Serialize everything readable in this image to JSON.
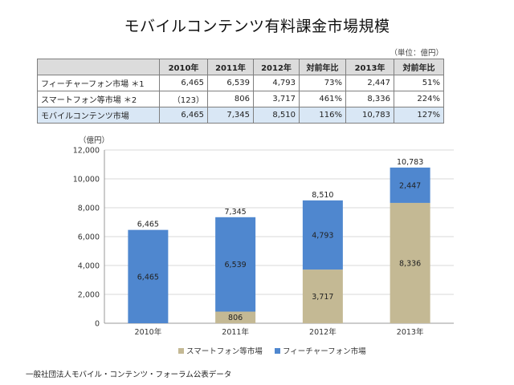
{
  "title": "モバイルコンテンツ有料課金市場規模",
  "unit_note": "（単位：億円）",
  "table": {
    "headers": [
      "",
      "2010年",
      "2011年",
      "2012年",
      "対前年比",
      "2013年",
      "対前年比"
    ],
    "rows": [
      [
        "フィーチャーフォン市場 ＊1",
        "6,465",
        "6,539",
        "4,793",
        "73%",
        "2,447",
        "51%"
      ],
      [
        "スマートフォン等市場 ＊2",
        "（123）",
        "806",
        "3,717",
        "461%",
        "8,336",
        "224%"
      ],
      [
        "モバイルコンテンツ市場",
        "6,465",
        "7,345",
        "8,510",
        "116%",
        "10,783",
        "127%"
      ]
    ]
  },
  "chart_data": {
    "type": "bar",
    "stacked": true,
    "categories": [
      "2010年",
      "2011年",
      "2012年",
      "2013年"
    ],
    "series": [
      {
        "name": "スマートフォン等市場",
        "values": [
          0,
          806,
          3717,
          8336
        ],
        "labels": [
          "",
          "806",
          "3,717",
          "8,336"
        ],
        "color": "#c4b994"
      },
      {
        "name": "フィーチャーフォン市場",
        "values": [
          6465,
          6539,
          4793,
          2447
        ],
        "labels": [
          "6,465",
          "6,539",
          "4,793",
          "2,447"
        ],
        "color": "#4f87cf"
      }
    ],
    "totals": [
      6465,
      7345,
      8510,
      10783
    ],
    "total_labels": [
      "6,465",
      "7,345",
      "8,510",
      "10,783"
    ],
    "ylabel": "（億円）",
    "ylim": [
      0,
      12000
    ],
    "yticks": [
      0,
      2000,
      4000,
      6000,
      8000,
      10000,
      12000
    ],
    "ytick_labels": [
      "0",
      "2,000",
      "4,000",
      "6,000",
      "8,000",
      "10,000",
      "12,000"
    ],
    "grid": true,
    "legend_position": "bottom"
  },
  "footer": "一般社団法人モバイル・コンテンツ・フォーラム公表データ"
}
